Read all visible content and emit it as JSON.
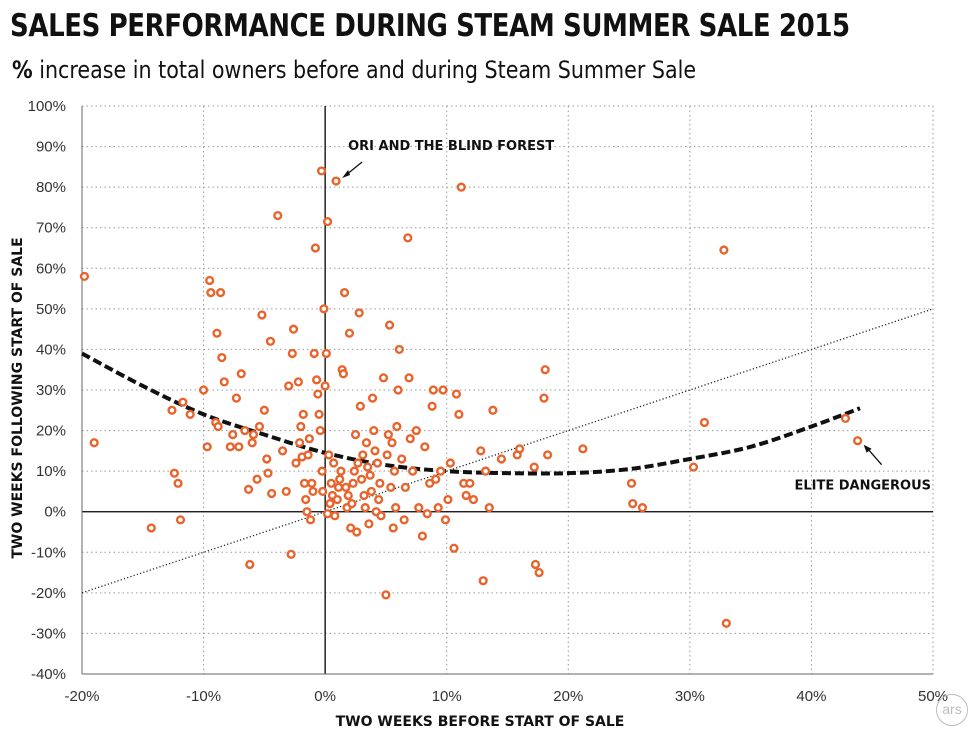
{
  "title": "SALES PERFORMANCE DURING STEAM SUMMER SALE 2015",
  "subtitle_pct": "%",
  "subtitle_rest": " increase in total owners before and during Steam Summer Sale",
  "watermark": "ars",
  "colors": {
    "point": "#e8642c",
    "trend": "#111111",
    "grid": "#9a9a9a",
    "axis": "#000000"
  },
  "chart_data": {
    "type": "scatter",
    "title": "SALES PERFORMANCE DURING STEAM SUMMER SALE 2015",
    "subtitle": "% increase in total owners before and during Steam Summer Sale",
    "xlabel": "TWO WEEKS BEFORE START OF SALE",
    "ylabel": "TWO WEEKS FOLLOWING START OF SALE",
    "xlim": [
      -20,
      50
    ],
    "ylim": [
      -40,
      100
    ],
    "xticks": [
      "-20%",
      "-10%",
      "0%",
      "10%",
      "20%",
      "30%",
      "40%",
      "50%"
    ],
    "yticks": [
      "100%",
      "90%",
      "80%",
      "70%",
      "60%",
      "50%",
      "40%",
      "30%",
      "20%",
      "10%",
      "0%",
      "-10%",
      "-20%",
      "-30%",
      "-40%"
    ],
    "grid": "dotted",
    "points": [
      [
        -19.8,
        58
      ],
      [
        -19,
        17
      ],
      [
        -14.3,
        -4
      ],
      [
        -12.6,
        25
      ],
      [
        -12.4,
        9.5
      ],
      [
        -12.1,
        7
      ],
      [
        -11.9,
        -2
      ],
      [
        -11.7,
        27
      ],
      [
        -11.1,
        24
      ],
      [
        -10,
        30
      ],
      [
        -9.7,
        16
      ],
      [
        -9.5,
        57
      ],
      [
        -9.4,
        54
      ],
      [
        -9,
        22
      ],
      [
        -8.9,
        44
      ],
      [
        -8.8,
        21
      ],
      [
        -8.6,
        54
      ],
      [
        -8.5,
        38
      ],
      [
        -8.3,
        32
      ],
      [
        -7.8,
        16
      ],
      [
        -7.6,
        19
      ],
      [
        -7.3,
        28
      ],
      [
        -7.1,
        16
      ],
      [
        -6.9,
        34
      ],
      [
        -6.6,
        20
      ],
      [
        -6.3,
        5.5
      ],
      [
        -6.2,
        -13
      ],
      [
        -6,
        17
      ],
      [
        -5.9,
        19
      ],
      [
        -5.6,
        8
      ],
      [
        -5.4,
        21
      ],
      [
        -5.2,
        48.5
      ],
      [
        -5,
        25
      ],
      [
        -4.8,
        13
      ],
      [
        -4.7,
        9.5
      ],
      [
        -4.5,
        42
      ],
      [
        -4.4,
        4.5
      ],
      [
        -3.9,
        73
      ],
      [
        -3.5,
        15
      ],
      [
        -3.2,
        5
      ],
      [
        -3,
        31
      ],
      [
        -2.8,
        -10.5
      ],
      [
        -2.7,
        39
      ],
      [
        -2.6,
        45
      ],
      [
        -2.4,
        12
      ],
      [
        -2.2,
        32
      ],
      [
        -2.1,
        17
      ],
      [
        -2,
        21
      ],
      [
        -1.9,
        13.5
      ],
      [
        -1.8,
        24
      ],
      [
        -1.7,
        7
      ],
      [
        -1.6,
        3
      ],
      [
        -1.5,
        0
      ],
      [
        -1.4,
        14
      ],
      [
        -1.3,
        18
      ],
      [
        -1.2,
        -2
      ],
      [
        -1.1,
        7
      ],
      [
        -1,
        5
      ],
      [
        -0.9,
        39
      ],
      [
        -0.8,
        65
      ],
      [
        -0.7,
        32.5
      ],
      [
        -0.6,
        29
      ],
      [
        -0.5,
        24
      ],
      [
        -0.4,
        20
      ],
      [
        -0.3,
        84
      ],
      [
        -0.25,
        10
      ],
      [
        -0.2,
        5
      ],
      [
        -0.1,
        50
      ],
      [
        0,
        31
      ],
      [
        0.1,
        39
      ],
      [
        0.2,
        -0.5
      ],
      [
        0.2,
        71.5
      ],
      [
        0.3,
        14
      ],
      [
        0.4,
        2
      ],
      [
        0.5,
        7
      ],
      [
        0.6,
        4
      ],
      [
        0.7,
        12
      ],
      [
        0.8,
        -1
      ],
      [
        0.9,
        81.5
      ],
      [
        1,
        3
      ],
      [
        1.1,
        6
      ],
      [
        1.2,
        8
      ],
      [
        1.3,
        10
      ],
      [
        1.4,
        35
      ],
      [
        1.5,
        34
      ],
      [
        1.6,
        54
      ],
      [
        1.7,
        6
      ],
      [
        1.8,
        1
      ],
      [
        1.9,
        4
      ],
      [
        2,
        44
      ],
      [
        2.1,
        -4
      ],
      [
        2.2,
        2
      ],
      [
        2.3,
        7
      ],
      [
        2.4,
        10
      ],
      [
        2.5,
        19
      ],
      [
        2.6,
        -5
      ],
      [
        2.7,
        12
      ],
      [
        2.8,
        49
      ],
      [
        2.9,
        26
      ],
      [
        3,
        8
      ],
      [
        3.1,
        14
      ],
      [
        3.2,
        4
      ],
      [
        3.3,
        1
      ],
      [
        3.4,
        17
      ],
      [
        3.5,
        11
      ],
      [
        3.6,
        -3
      ],
      [
        3.7,
        9
      ],
      [
        3.8,
        5
      ],
      [
        3.9,
        28
      ],
      [
        4,
        20
      ],
      [
        4.1,
        15
      ],
      [
        4.2,
        0
      ],
      [
        4.3,
        12
      ],
      [
        4.4,
        3
      ],
      [
        4.5,
        7
      ],
      [
        4.6,
        -1
      ],
      [
        4.8,
        33
      ],
      [
        5,
        -20.5
      ],
      [
        5.1,
        14
      ],
      [
        5.2,
        19
      ],
      [
        5.3,
        46
      ],
      [
        5.4,
        6
      ],
      [
        5.5,
        17
      ],
      [
        5.6,
        -4
      ],
      [
        5.7,
        10
      ],
      [
        5.8,
        1
      ],
      [
        5.9,
        21
      ],
      [
        6,
        30
      ],
      [
        6.1,
        40
      ],
      [
        6.3,
        13
      ],
      [
        6.5,
        -2
      ],
      [
        6.6,
        6
      ],
      [
        6.8,
        67.5
      ],
      [
        6.9,
        33
      ],
      [
        7,
        18
      ],
      [
        7.2,
        10
      ],
      [
        7.5,
        20
      ],
      [
        7.7,
        1
      ],
      [
        8,
        -6
      ],
      [
        8.2,
        16
      ],
      [
        8.4,
        -0.5
      ],
      [
        8.6,
        7
      ],
      [
        8.8,
        26
      ],
      [
        8.9,
        30
      ],
      [
        9.1,
        8
      ],
      [
        9.3,
        1
      ],
      [
        9.5,
        10
      ],
      [
        9.7,
        30
      ],
      [
        9.9,
        -2
      ],
      [
        10.1,
        3
      ],
      [
        10.3,
        12
      ],
      [
        10.6,
        -9
      ],
      [
        10.8,
        29
      ],
      [
        11,
        24
      ],
      [
        11.2,
        80
      ],
      [
        11.4,
        7
      ],
      [
        11.6,
        4
      ],
      [
        11.9,
        7
      ],
      [
        12.2,
        3
      ],
      [
        12.8,
        15
      ],
      [
        13,
        -17
      ],
      [
        13.2,
        10
      ],
      [
        13.5,
        1
      ],
      [
        13.8,
        25
      ],
      [
        14.5,
        13
      ],
      [
        15.8,
        14
      ],
      [
        16,
        15.5
      ],
      [
        17.2,
        11
      ],
      [
        17.3,
        -13
      ],
      [
        17.6,
        -15
      ],
      [
        18,
        28
      ],
      [
        18.1,
        35
      ],
      [
        18.3,
        14
      ],
      [
        21.2,
        15.5
      ],
      [
        25.2,
        7
      ],
      [
        25.3,
        2
      ],
      [
        26.1,
        1
      ],
      [
        30.3,
        11
      ],
      [
        31.2,
        22
      ],
      [
        32.8,
        64.5
      ],
      [
        33,
        -27.5
      ],
      [
        42.8,
        23
      ],
      [
        43.8,
        17.5
      ]
    ],
    "fit_curve": [
      [
        -20,
        39
      ],
      [
        -15,
        31
      ],
      [
        -10,
        24
      ],
      [
        -5,
        19
      ],
      [
        0,
        14.5
      ],
      [
        5,
        11.5
      ],
      [
        10,
        10
      ],
      [
        15,
        9.5
      ],
      [
        20,
        9.5
      ],
      [
        25,
        10.5
      ],
      [
        30,
        13
      ],
      [
        35,
        16
      ],
      [
        40,
        21
      ],
      [
        44,
        25.5
      ]
    ],
    "reference_line": [
      [
        -20,
        -20
      ],
      [
        50,
        50
      ]
    ],
    "annotations": [
      {
        "text": "ORI AND THE BLIND FOREST",
        "x": 0.9,
        "y": 81.5
      },
      {
        "text": "ELITE DANGEROUS",
        "x": 43.8,
        "y": 17.5
      }
    ]
  }
}
